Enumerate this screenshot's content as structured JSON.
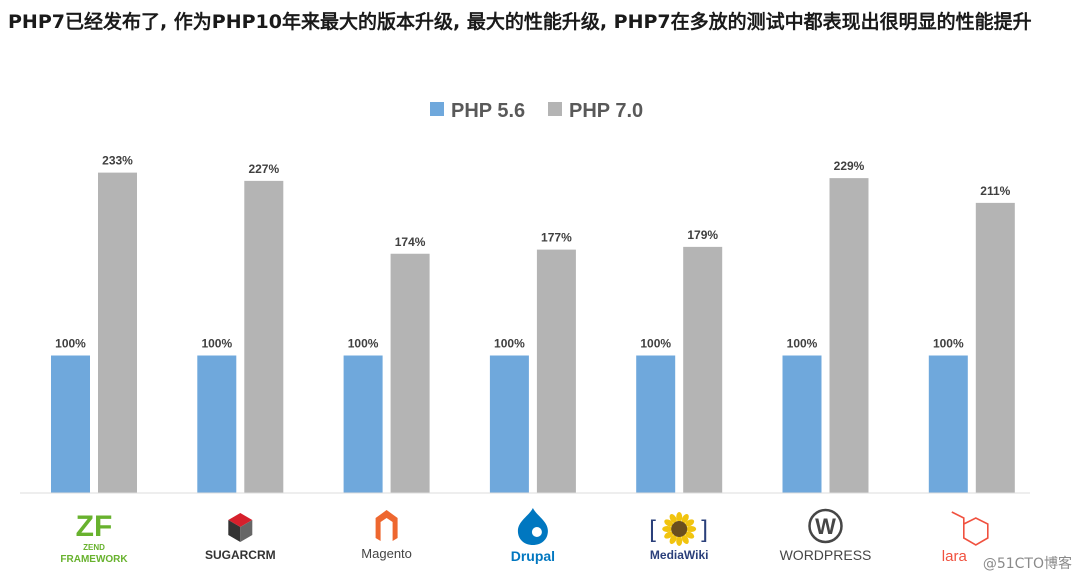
{
  "heading": "PHP7已经发布了, 作为PHP10年来最大的版本升级, 最大的性能升级, PHP7在多放的测试中都表现出很明显的性能提升",
  "watermark": "@51CTO博客",
  "colors": {
    "php56": "#6fa8dc",
    "php70": "#b4b4b4"
  },
  "chart_data": {
    "type": "bar",
    "title": "",
    "xlabel": "",
    "ylabel": "",
    "legend_position": "top-center",
    "grid": false,
    "categories": [
      "Zend Framework",
      "SugarCRM",
      "Magento",
      "Drupal",
      "MediaWiki",
      "WordPress",
      "Laravel"
    ],
    "category_logos": [
      {
        "icon": "zend-framework-logo",
        "lines": [
          "ZEND",
          "FRAMEWORK"
        ]
      },
      {
        "icon": "sugarcrm-logo",
        "lines": [
          "SUGARCRM"
        ]
      },
      {
        "icon": "magento-logo",
        "lines": [
          "Magento"
        ]
      },
      {
        "icon": "drupal-logo",
        "lines": [
          "Drupal"
        ]
      },
      {
        "icon": "mediawiki-logo",
        "lines": [
          "MediaWiki"
        ]
      },
      {
        "icon": "wordpress-logo",
        "lines": [
          "WORDPRESS"
        ]
      },
      {
        "icon": "laravel-logo",
        "lines": [
          "lara"
        ]
      }
    ],
    "series": [
      {
        "name": "PHP 5.6",
        "values": [
          100,
          100,
          100,
          100,
          100,
          100,
          100
        ],
        "labels": [
          "100%",
          "100%",
          "100%",
          "100%",
          "100%",
          "100%",
          "100%"
        ]
      },
      {
        "name": "PHP 7.0",
        "values": [
          233,
          227,
          174,
          177,
          179,
          229,
          211
        ],
        "labels": [
          "233%",
          "227%",
          "174%",
          "177%",
          "179%",
          "229%",
          "211%"
        ]
      }
    ],
    "ylim": [
      0,
      240
    ],
    "unit": "%"
  }
}
